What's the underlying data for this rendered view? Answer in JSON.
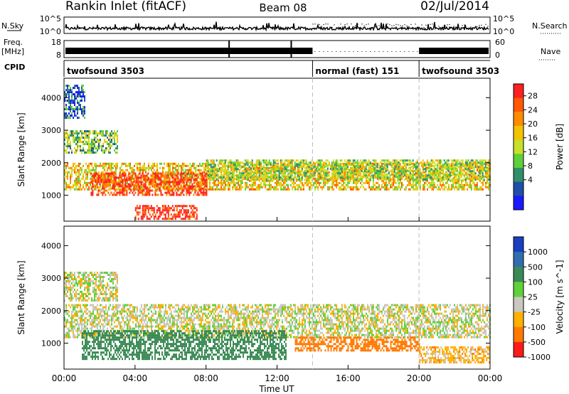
{
  "header": {
    "station": "Rankin Inlet (fitACF)",
    "beam": "Beam 08",
    "date": "02/Jul/2014"
  },
  "summary": {
    "nsky_label": "N.Sky",
    "nsearch_label": "N.Search",
    "freq_label": "Freq.",
    "freq_unit": "[MHz]",
    "nave_label": "Nave",
    "cpid_label": "CPID",
    "nsky_top": "10^5",
    "nsky_bottom": "10^0",
    "nsearch_top": "10^5",
    "nsearch_bottom": "10^0",
    "freq_top": "18",
    "freq_bottom": "8",
    "nave_top": "60",
    "nave_bottom": "0",
    "cpid_segments": [
      {
        "label": "twofsound 3503",
        "start_h": 0,
        "end_h": 14.0
      },
      {
        "label": "normal (fast) 151",
        "start_h": 14.0,
        "end_h": 20.0
      },
      {
        "label": "twofsound 3503",
        "start_h": 20.0,
        "end_h": 24
      }
    ]
  },
  "x_axis": {
    "label": "Time UT",
    "ticks": [
      "00:00",
      "04:00",
      "08:00",
      "12:00",
      "16:00",
      "20:00",
      "00:00"
    ],
    "range_h": [
      0,
      24
    ]
  },
  "chart_data": [
    {
      "type": "heatmap",
      "name": "power",
      "ylabel": "Slant Range [km]",
      "ylim": [
        200,
        4600
      ],
      "yticks": [
        "1000",
        "2000",
        "3000",
        "4000"
      ],
      "yticks_values": [
        1000,
        2000,
        3000,
        4000
      ],
      "colorbar_label": "Power [dB]",
      "colorbar_ticks": [
        "28",
        "24",
        "20",
        "16",
        "12",
        "8",
        "4"
      ],
      "colorbar_values": [
        28,
        24,
        20,
        16,
        12,
        8,
        4
      ],
      "colors": [
        "#1a1aff",
        "#1f4fa8",
        "#2f8f6a",
        "#5fcf3a",
        "#c8e02a",
        "#f2c400",
        "#ff8c00",
        "#ff5a00",
        "#ff2020"
      ],
      "echo_bands": [
        {
          "start_h": 0.0,
          "end_h": 24,
          "range_low": 1200,
          "range_high": 2000,
          "power_db": 18
        },
        {
          "start_h": 1.5,
          "end_h": 8.0,
          "range_low": 1000,
          "range_high": 1700,
          "power_db": 27
        },
        {
          "start_h": 8.0,
          "end_h": 24,
          "range_low": 1500,
          "range_high": 2100,
          "power_db": 14
        },
        {
          "start_h": 4.0,
          "end_h": 7.5,
          "range_low": 300,
          "range_high": 700,
          "power_db": 29
        },
        {
          "start_h": 0.0,
          "end_h": 3.0,
          "range_low": 2300,
          "range_high": 3000,
          "power_db": 12
        },
        {
          "start_h": 0.0,
          "end_h": 1.2,
          "range_low": 3400,
          "range_high": 4400,
          "power_db": 6
        }
      ]
    },
    {
      "type": "heatmap",
      "name": "velocity",
      "ylabel": "Slant Range [km]",
      "ylim": [
        200,
        4600
      ],
      "yticks": [
        "1000",
        "2000",
        "3000",
        "4000"
      ],
      "yticks_values": [
        1000,
        2000,
        3000,
        4000
      ],
      "colorbar_label": "Velocity [m s^-1]",
      "colorbar_ticks": [
        "1000",
        "500",
        "100",
        "25",
        "-25",
        "-100",
        "-500",
        "-1000"
      ],
      "colorbar_values": [
        1000,
        500,
        100,
        25,
        -25,
        -100,
        -500,
        -1000
      ],
      "colors": [
        "#1a3fbf",
        "#2f6fb0",
        "#3a8a55",
        "#5fd23a",
        "#c8c8c0",
        "#ffb000",
        "#ff7a00",
        "#ff1a1a"
      ],
      "echo_bands": [
        {
          "start_h": 0.0,
          "end_h": 24,
          "range_low": 1200,
          "range_high": 2200,
          "velocity": 0
        },
        {
          "start_h": 1.0,
          "end_h": 12.5,
          "range_low": 500,
          "range_high": 1400,
          "velocity": 200
        },
        {
          "start_h": 13.0,
          "end_h": 20.0,
          "range_low": 800,
          "range_high": 1200,
          "velocity": -200
        },
        {
          "start_h": 20.0,
          "end_h": 24,
          "range_low": 400,
          "range_high": 900,
          "velocity": -60
        },
        {
          "start_h": 0.0,
          "end_h": 3.0,
          "range_low": 2300,
          "range_high": 3200,
          "velocity": 0
        }
      ]
    }
  ]
}
